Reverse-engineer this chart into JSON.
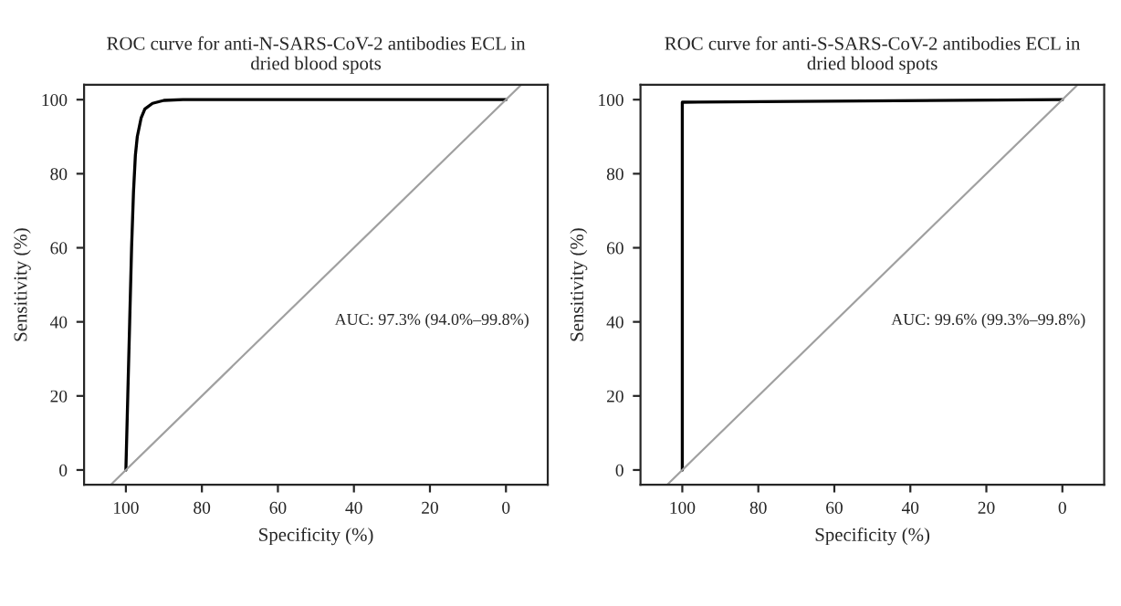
{
  "chart_data": [
    {
      "type": "line",
      "title": "ROC curve for anti-N-SARS-CoV-2 antibodies ECL in\ndried blood spots",
      "xlabel": "Specificity (%)",
      "ylabel": "Sensitivity (%)",
      "xlim": [
        111,
        -11
      ],
      "ylim": [
        -4,
        104
      ],
      "xticks": [
        100,
        80,
        60,
        40,
        20,
        0
      ],
      "yticks": [
        0,
        20,
        40,
        60,
        80,
        100
      ],
      "grid": false,
      "legend": false,
      "series": [
        {
          "color": "#000000",
          "x": [
            100,
            99.5,
            99,
            98.5,
            98,
            97.5,
            97,
            96,
            95,
            93,
            90,
            85,
            0
          ],
          "values": [
            0,
            20,
            40,
            60,
            75,
            85,
            90,
            95,
            97.5,
            99,
            99.8,
            100,
            100
          ]
        },
        {
          "color": "#a0a0a0",
          "x": [
            104,
            -4
          ],
          "values": [
            -4,
            104
          ]
        }
      ],
      "annotations": [
        "AUC: 97.3% (94.0%–99.8%)"
      ]
    },
    {
      "type": "line",
      "title": "ROC curve for anti-S-SARS-CoV-2 antibodies ECL in\ndried blood spots",
      "xlabel": "Specificity (%)",
      "ylabel": "Sensitivity (%)",
      "xlim": [
        111,
        -11
      ],
      "ylim": [
        -4,
        104
      ],
      "xticks": [
        100,
        80,
        60,
        40,
        20,
        0
      ],
      "yticks": [
        0,
        20,
        40,
        60,
        80,
        100
      ],
      "grid": false,
      "legend": false,
      "series": [
        {
          "color": "#000000",
          "x": [
            100,
            100,
            0
          ],
          "values": [
            0,
            99.3,
            100
          ]
        },
        {
          "color": "#a0a0a0",
          "x": [
            104,
            -4
          ],
          "values": [
            -4,
            104
          ]
        }
      ],
      "annotations": [
        "AUC: 99.6% (99.3%–99.8%)"
      ]
    }
  ]
}
